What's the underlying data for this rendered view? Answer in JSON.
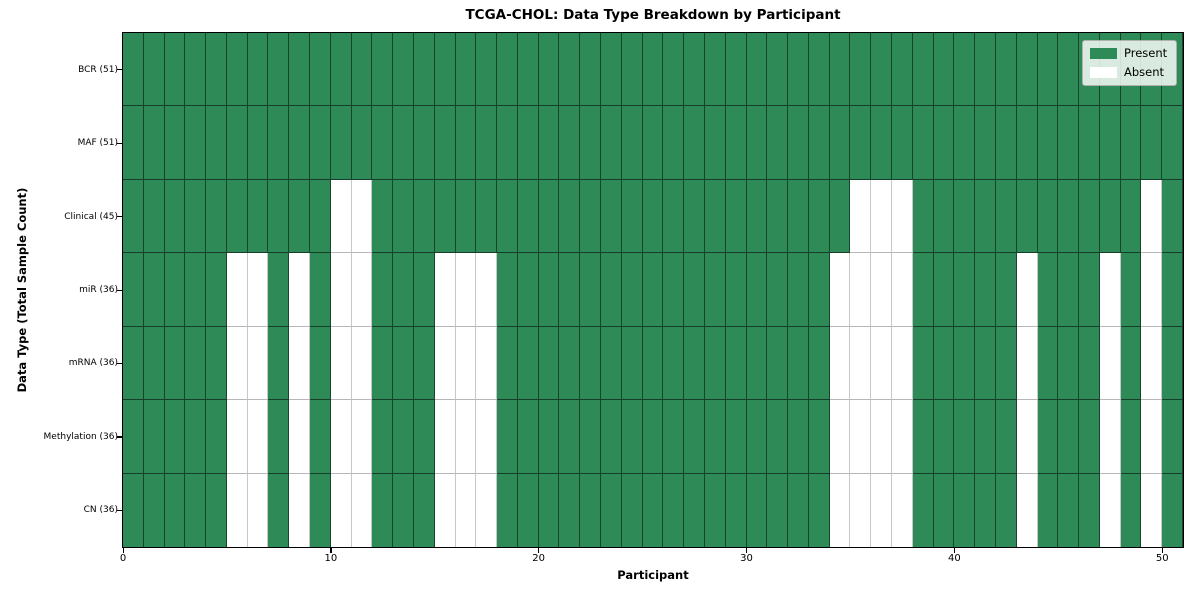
{
  "chart_data": {
    "type": "heatmap",
    "title": "TCGA-CHOL: Data Type Breakdown by Participant",
    "xlabel": "Participant",
    "ylabel": "Data Type (Total Sample Count)",
    "n_participants": 51,
    "x_range": [
      0,
      51
    ],
    "x_ticks": [
      0,
      10,
      20,
      30,
      40,
      50
    ],
    "grid": true,
    "legend_position": "upper right",
    "legend_labels": {
      "present": "Present",
      "absent": "Absent"
    },
    "colors": {
      "present": "#2e8b57",
      "absent": "#ffffff"
    },
    "rows": [
      {
        "label": "BCR (51)",
        "total_samples": 51,
        "absent_participants": []
      },
      {
        "label": "MAF (51)",
        "total_samples": 51,
        "absent_participants": []
      },
      {
        "label": "Clinical (45)",
        "total_samples": 45,
        "absent_participants": [
          10,
          11,
          35,
          36,
          37,
          49
        ]
      },
      {
        "label": "miR (36)",
        "total_samples": 36,
        "absent_participants": [
          5,
          6,
          8,
          10,
          11,
          15,
          16,
          17,
          34,
          35,
          36,
          37,
          43,
          47,
          49
        ]
      },
      {
        "label": "mRNA (36)",
        "total_samples": 36,
        "absent_participants": [
          5,
          6,
          8,
          10,
          11,
          15,
          16,
          17,
          34,
          35,
          36,
          37,
          43,
          47,
          49
        ]
      },
      {
        "label": "Methylation (36)",
        "total_samples": 36,
        "absent_participants": [
          5,
          6,
          8,
          10,
          11,
          15,
          16,
          17,
          34,
          35,
          36,
          37,
          43,
          47,
          49
        ]
      },
      {
        "label": "CN (36)",
        "total_samples": 36,
        "absent_participants": [
          5,
          6,
          8,
          10,
          11,
          15,
          16,
          17,
          34,
          35,
          36,
          37,
          43,
          47,
          49
        ]
      }
    ]
  }
}
